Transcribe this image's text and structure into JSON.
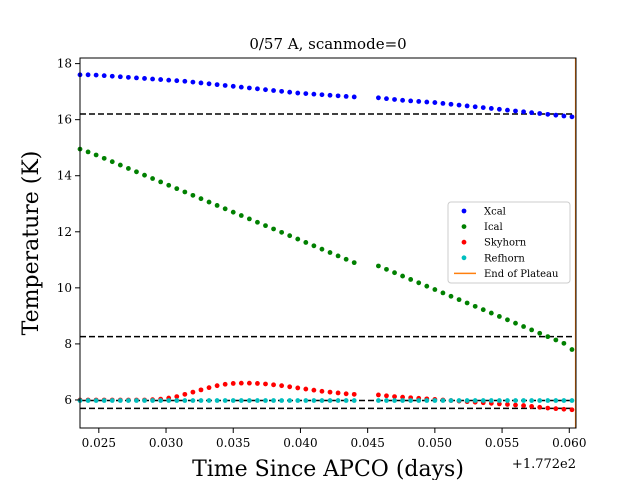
{
  "chart_data": {
    "type": "scatter",
    "title": "0/57 A, scanmode=0",
    "xlabel": "Time Since APCO (days)",
    "ylabel": "Temperature (K)",
    "x_offset_label": "+1.772e2",
    "xlim": [
      0.0236,
      0.0605
    ],
    "ylim": [
      5.0,
      18.2
    ],
    "xticks": [
      0.025,
      0.03,
      0.035,
      0.04,
      0.045,
      0.05,
      0.055,
      0.06
    ],
    "xtick_labels": [
      "0.025",
      "0.030",
      "0.035",
      "0.040",
      "0.045",
      "0.050",
      "0.055",
      "0.060"
    ],
    "yticks": [
      6,
      8,
      10,
      12,
      14,
      16,
      18
    ],
    "ytick_labels": [
      "6",
      "8",
      "10",
      "12",
      "14",
      "16",
      "18"
    ],
    "x": [
      0.0236,
      0.0242,
      0.0248,
      0.0254,
      0.026,
      0.0266,
      0.0272,
      0.0278,
      0.0284,
      0.029,
      0.0296,
      0.0302,
      0.0308,
      0.0314,
      0.032,
      0.0326,
      0.0332,
      0.0338,
      0.0344,
      0.035,
      0.0356,
      0.0362,
      0.0368,
      0.0374,
      0.038,
      0.0386,
      0.0392,
      0.0398,
      0.0404,
      0.041,
      0.0416,
      0.0422,
      0.0428,
      0.0434,
      0.044,
      0.0458,
      0.0464,
      0.047,
      0.0476,
      0.0482,
      0.0488,
      0.0494,
      0.05,
      0.0506,
      0.0512,
      0.0518,
      0.0524,
      0.053,
      0.0536,
      0.0542,
      0.0548,
      0.0554,
      0.056,
      0.0566,
      0.0572,
      0.0578,
      0.0584,
      0.059,
      0.0596,
      0.0602
    ],
    "series": [
      {
        "name": "Xcal",
        "color": "#0000ff",
        "values": [
          17.6,
          17.6,
          17.59,
          17.57,
          17.55,
          17.53,
          17.51,
          17.49,
          17.47,
          17.45,
          17.43,
          17.41,
          17.39,
          17.37,
          17.34,
          17.31,
          17.28,
          17.25,
          17.22,
          17.19,
          17.16,
          17.13,
          17.1,
          17.07,
          17.04,
          17.01,
          16.98,
          16.95,
          16.93,
          16.91,
          16.89,
          16.87,
          16.85,
          16.83,
          16.81,
          16.78,
          16.75,
          16.72,
          16.69,
          16.67,
          16.65,
          16.63,
          16.61,
          16.58,
          16.55,
          16.52,
          16.49,
          16.46,
          16.43,
          16.4,
          16.37,
          16.34,
          16.31,
          16.28,
          16.25,
          16.22,
          16.19,
          16.16,
          16.13,
          16.1
        ]
      },
      {
        "name": "Ical",
        "color": "#008000",
        "values": [
          14.95,
          14.85,
          14.74,
          14.62,
          14.5,
          14.38,
          14.26,
          14.14,
          14.02,
          13.9,
          13.78,
          13.66,
          13.54,
          13.42,
          13.3,
          13.18,
          13.06,
          12.94,
          12.82,
          12.7,
          12.58,
          12.46,
          12.34,
          12.22,
          12.1,
          11.98,
          11.86,
          11.74,
          11.62,
          11.5,
          11.38,
          11.26,
          11.14,
          11.02,
          10.9,
          10.78,
          10.66,
          10.54,
          10.42,
          10.3,
          10.18,
          10.06,
          9.94,
          9.82,
          9.7,
          9.58,
          9.46,
          9.34,
          9.22,
          9.1,
          8.98,
          8.86,
          8.74,
          8.62,
          8.5,
          8.38,
          8.26,
          8.14,
          8.02,
          7.8
        ]
      },
      {
        "name": "Skyhorn",
        "color": "#ff0000",
        "values": [
          6.0,
          6.0,
          6.0,
          6.0,
          6.0,
          6.0,
          6.0,
          6.0,
          6.0,
          6.01,
          6.03,
          6.07,
          6.12,
          6.2,
          6.28,
          6.36,
          6.44,
          6.51,
          6.56,
          6.59,
          6.6,
          6.6,
          6.59,
          6.57,
          6.54,
          6.51,
          6.47,
          6.43,
          6.39,
          6.35,
          6.31,
          6.28,
          6.25,
          6.22,
          6.2,
          6.18,
          6.15,
          6.12,
          6.1,
          6.08,
          6.06,
          6.04,
          6.02,
          6.0,
          5.98,
          5.96,
          5.94,
          5.92,
          5.9,
          5.88,
          5.86,
          5.84,
          5.82,
          5.8,
          5.77,
          5.74,
          5.71,
          5.69,
          5.67,
          5.65
        ]
      },
      {
        "name": "Refhorn",
        "color": "#00bfbf",
        "values": [
          5.98,
          5.98,
          5.98,
          5.98,
          5.98,
          5.98,
          5.98,
          5.98,
          5.98,
          5.98,
          5.98,
          5.98,
          5.98,
          5.98,
          5.98,
          5.98,
          5.98,
          5.98,
          5.98,
          5.98,
          5.98,
          5.98,
          5.98,
          5.98,
          5.98,
          5.98,
          5.98,
          5.98,
          5.98,
          5.98,
          5.98,
          5.98,
          5.98,
          5.98,
          5.98,
          5.98,
          5.98,
          5.98,
          5.98,
          5.98,
          5.98,
          5.98,
          5.98,
          5.98,
          5.98,
          5.98,
          5.98,
          5.98,
          5.98,
          5.98,
          5.98,
          5.98,
          5.98,
          5.98,
          5.98,
          5.98,
          5.98,
          5.98,
          5.98,
          5.98
        ]
      }
    ],
    "hlines": [
      {
        "y": 16.2,
        "style": "dashed",
        "color": "#000000"
      },
      {
        "y": 8.26,
        "style": "dashed",
        "color": "#000000"
      },
      {
        "y": 5.98,
        "style": "dashed",
        "color": "#000000"
      },
      {
        "y": 5.7,
        "style": "dashed",
        "color": "#000000"
      }
    ],
    "vlines": [
      {
        "name": "End of Plateau",
        "x": 0.0605,
        "color": "#ff7f0e"
      }
    ],
    "legend": {
      "position": "center-right",
      "entries": [
        {
          "label": "Xcal",
          "kind": "marker",
          "color": "#0000ff"
        },
        {
          "label": "Ical",
          "kind": "marker",
          "color": "#008000"
        },
        {
          "label": "Skyhorn",
          "kind": "marker",
          "color": "#ff0000"
        },
        {
          "label": "Refhorn",
          "kind": "marker",
          "color": "#00bfbf"
        },
        {
          "label": "End of Plateau",
          "kind": "line",
          "color": "#ff7f0e"
        }
      ]
    },
    "grid": false
  }
}
